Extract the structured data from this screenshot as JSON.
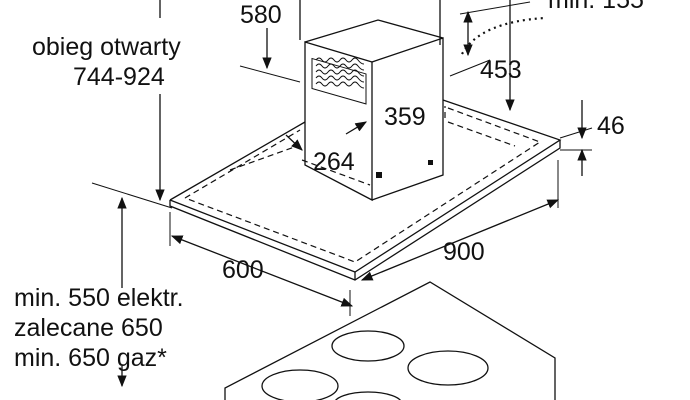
{
  "labels": {
    "top_dim": "580",
    "top_right_partial": "min. 155",
    "open_circulation_title": "obieg otwarty",
    "open_circulation_range": "744-924",
    "chimney_depth_offset": "453",
    "chimney_width": "359",
    "canopy_thickness": "46",
    "chimney_depth": "264",
    "hood_width": "900",
    "hood_depth": "600",
    "min_electric": "min. 550 elektr.",
    "recommended": "zalecane 650",
    "min_gas": "min. 650 gaz*"
  }
}
